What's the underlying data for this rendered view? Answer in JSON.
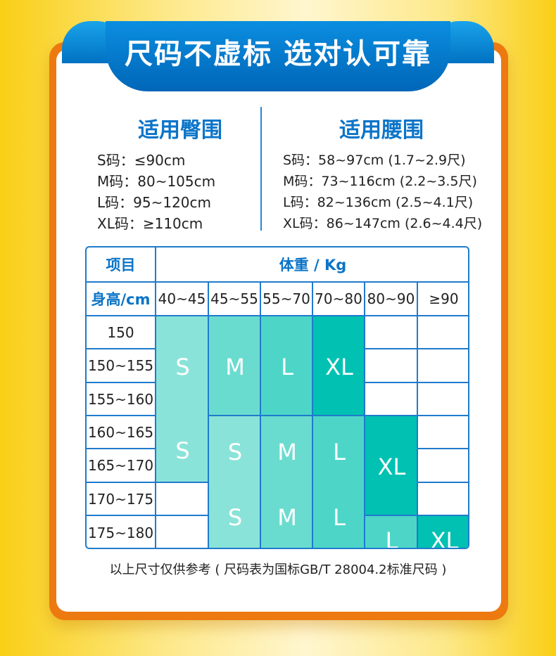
{
  "banner": {
    "title": "尺码不虚标 选对认可靠"
  },
  "hip": {
    "title": "适用臀围",
    "items": [
      "S码：≤90cm",
      "M码：80~105cm",
      "L码：95~120cm",
      "XL码：≥110cm"
    ]
  },
  "waist": {
    "title": "适用腰围",
    "items": [
      "S码：58~97cm (1.7~2.9尺)",
      "M码：73~116cm (2.2~3.5尺)",
      "L码：82~136cm (2.5~4.1尺)",
      "XL码：86~147cm (2.6~4.4尺)"
    ]
  },
  "table": {
    "item_header": "项目",
    "weight_header": "体重 / Kg",
    "height_header": "身高/cm",
    "weights": [
      "40~45",
      "45~55",
      "55~70",
      "70~80",
      "80~90",
      "≥90"
    ],
    "heights": [
      "150",
      "150~155",
      "155~160",
      "160~165",
      "165~170",
      "170~175",
      "175~180"
    ],
    "sizes": {
      "s": "S",
      "m": "M",
      "l": "L",
      "xl": "XL"
    },
    "colors": {
      "S": "#8ae3d8",
      "M": "#6adccf",
      "L": "#4dd6c8",
      "XL": "#00c1b2",
      "border": "#1f7bcc",
      "accent": "#0b74c8"
    }
  },
  "note": "以上尺寸仅供参考 ( 尺码表为国标GB/T 28004.2标准尺码 )"
}
